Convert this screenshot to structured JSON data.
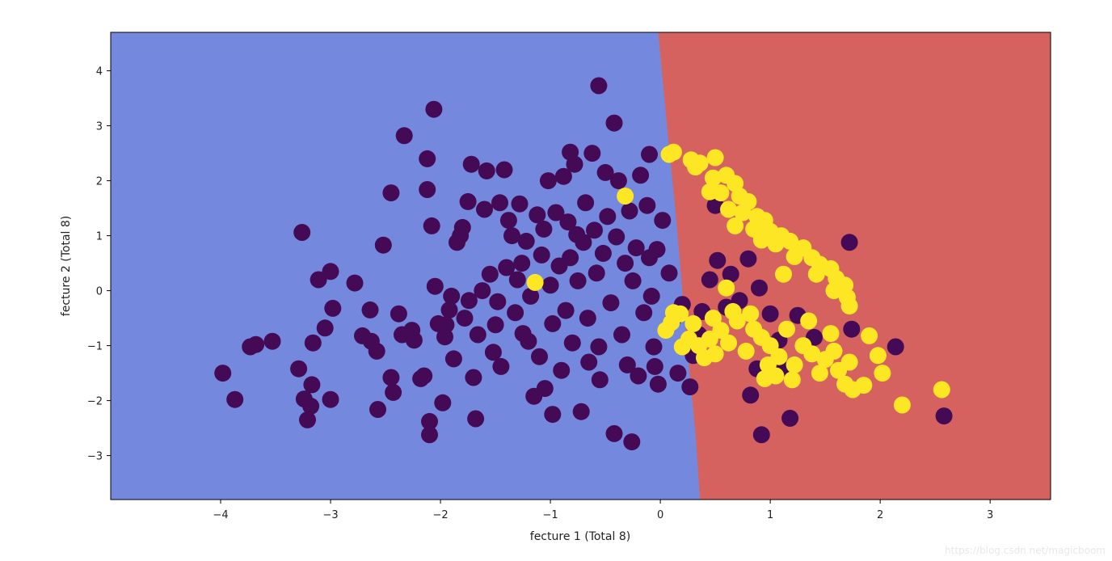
{
  "chart_data": {
    "type": "scatter",
    "title": "",
    "xlabel": "fecture 1 (Total 8)",
    "ylabel": "fecture 2 (Total 8)",
    "xlim": [
      -5.0,
      3.55
    ],
    "ylim": [
      -3.8,
      4.7
    ],
    "xticks": [
      -4,
      -3,
      -2,
      -1,
      0,
      1,
      2,
      3
    ],
    "yticks": [
      -3,
      -2,
      -1,
      0,
      1,
      2,
      3,
      4
    ],
    "grid": false,
    "legend": "none",
    "background_regions": {
      "left_color": "#7489de",
      "right_color": "#d6625f",
      "boundary": [
        [
          -0.02,
          4.7
        ],
        [
          0.07,
          2.8
        ],
        [
          0.14,
          1.4
        ],
        [
          0.2,
          0.0
        ],
        [
          0.26,
          -1.4
        ],
        [
          0.32,
          -2.6
        ],
        [
          0.36,
          -3.8
        ]
      ]
    },
    "series": [
      {
        "color": "#450a55",
        "points": [
          [
            -3.98,
            -1.5
          ],
          [
            -3.87,
            -1.98
          ],
          [
            -3.73,
            -1.02
          ],
          [
            -3.68,
            -0.98
          ],
          [
            -3.53,
            -0.92
          ],
          [
            -3.29,
            -1.42
          ],
          [
            -3.26,
            1.06
          ],
          [
            -3.24,
            -1.97
          ],
          [
            -3.21,
            -2.35
          ],
          [
            -3.18,
            -2.1
          ],
          [
            -3.17,
            -1.71
          ],
          [
            -3.16,
            -0.95
          ],
          [
            -3.11,
            0.2
          ],
          [
            -3.05,
            -0.68
          ],
          [
            -3.0,
            0.35
          ],
          [
            -3.0,
            -1.98
          ],
          [
            -2.98,
            -0.32
          ],
          [
            -2.78,
            0.14
          ],
          [
            -2.71,
            -0.82
          ],
          [
            -2.64,
            -0.35
          ],
          [
            -2.63,
            -0.92
          ],
          [
            -2.58,
            -1.1
          ],
          [
            -2.57,
            -2.16
          ],
          [
            -2.52,
            0.83
          ],
          [
            -2.45,
            -1.58
          ],
          [
            -2.43,
            -1.85
          ],
          [
            -2.38,
            -0.42
          ],
          [
            -2.35,
            -0.8
          ],
          [
            -2.45,
            1.78
          ],
          [
            -2.33,
            2.82
          ],
          [
            -2.26,
            -0.72
          ],
          [
            -2.24,
            -0.9
          ],
          [
            -2.18,
            -1.6
          ],
          [
            -2.15,
            -1.55
          ],
          [
            -2.12,
            2.4
          ],
          [
            -2.12,
            1.84
          ],
          [
            -2.1,
            -2.38
          ],
          [
            -2.1,
            -2.62
          ],
          [
            -2.08,
            1.18
          ],
          [
            -2.05,
            0.08
          ],
          [
            -2.02,
            -0.6
          ],
          [
            -1.98,
            -2.04
          ],
          [
            -1.96,
            -0.84
          ],
          [
            -1.95,
            -0.62
          ],
          [
            -1.92,
            -0.35
          ],
          [
            -1.9,
            -0.1
          ],
          [
            -1.88,
            -1.24
          ],
          [
            -1.85,
            0.88
          ],
          [
            -1.82,
            1.0
          ],
          [
            -1.8,
            1.15
          ],
          [
            -1.78,
            -0.5
          ],
          [
            -1.75,
            1.62
          ],
          [
            -1.74,
            -0.18
          ],
          [
            -1.72,
            2.3
          ],
          [
            -1.7,
            -1.58
          ],
          [
            -1.68,
            -2.33
          ],
          [
            -1.66,
            -0.8
          ],
          [
            -1.62,
            0.0
          ],
          [
            -1.6,
            1.48
          ],
          [
            -1.58,
            2.18
          ],
          [
            -1.55,
            0.3
          ],
          [
            -1.52,
            -1.12
          ],
          [
            -1.5,
            -0.62
          ],
          [
            -1.48,
            -0.2
          ],
          [
            -1.46,
            1.6
          ],
          [
            -1.45,
            -1.38
          ],
          [
            -1.42,
            2.2
          ],
          [
            -1.4,
            0.42
          ],
          [
            -1.38,
            1.28
          ],
          [
            -1.35,
            1.0
          ],
          [
            -1.32,
            -0.4
          ],
          [
            -1.3,
            0.2
          ],
          [
            -1.28,
            1.58
          ],
          [
            -1.25,
            -0.78
          ],
          [
            -1.22,
            0.9
          ],
          [
            -1.2,
            -0.92
          ],
          [
            -1.18,
            -0.1
          ],
          [
            -1.15,
            -1.92
          ],
          [
            -1.12,
            1.38
          ],
          [
            -1.1,
            -1.2
          ],
          [
            -1.08,
            0.65
          ],
          [
            -1.06,
            1.12
          ],
          [
            -1.05,
            -1.78
          ],
          [
            -1.02,
            2.0
          ],
          [
            -1.0,
            0.1
          ],
          [
            -0.98,
            -0.6
          ],
          [
            -0.95,
            1.42
          ],
          [
            -0.92,
            0.45
          ],
          [
            -0.9,
            -1.45
          ],
          [
            -0.88,
            2.08
          ],
          [
            -0.86,
            -0.36
          ],
          [
            -0.84,
            1.25
          ],
          [
            -0.82,
            0.6
          ],
          [
            -0.8,
            -0.95
          ],
          [
            -0.78,
            2.3
          ],
          [
            -0.76,
            1.02
          ],
          [
            -0.75,
            0.18
          ],
          [
            -0.72,
            -2.2
          ],
          [
            -0.7,
            0.88
          ],
          [
            -0.68,
            1.6
          ],
          [
            -0.66,
            -0.5
          ],
          [
            -0.65,
            -1.3
          ],
          [
            -0.62,
            2.5
          ],
          [
            -0.6,
            1.1
          ],
          [
            -0.58,
            0.32
          ],
          [
            -0.56,
            -1.02
          ],
          [
            -0.55,
            -1.62
          ],
          [
            -0.52,
            0.68
          ],
          [
            -0.5,
            2.15
          ],
          [
            -0.48,
            1.35
          ],
          [
            -0.45,
            -0.22
          ],
          [
            -0.42,
            -2.6
          ],
          [
            -0.4,
            0.98
          ],
          [
            -0.38,
            2.0
          ],
          [
            -0.35,
            -0.8
          ],
          [
            -0.32,
            0.5
          ],
          [
            -0.3,
            -1.35
          ],
          [
            -0.28,
            1.45
          ],
          [
            -0.26,
            -2.75
          ],
          [
            -0.25,
            0.18
          ],
          [
            -0.22,
            0.78
          ],
          [
            -0.2,
            -1.55
          ],
          [
            -0.18,
            2.1
          ],
          [
            -0.15,
            -0.4
          ],
          [
            -0.12,
            1.55
          ],
          [
            -0.1,
            0.6
          ],
          [
            -0.08,
            -0.1
          ],
          [
            -0.06,
            -1.02
          ],
          [
            -0.05,
            -1.38
          ],
          [
            -0.03,
            0.75
          ],
          [
            -0.02,
            -1.7
          ],
          [
            0.02,
            1.28
          ],
          [
            0.08,
            0.32
          ],
          [
            0.12,
            -0.5
          ],
          [
            0.16,
            -1.5
          ],
          [
            0.2,
            -0.25
          ],
          [
            0.27,
            -1.75
          ],
          [
            0.3,
            -1.18
          ],
          [
            0.35,
            -0.8
          ],
          [
            0.38,
            -0.38
          ],
          [
            0.45,
            0.2
          ],
          [
            0.52,
            0.55
          ],
          [
            0.6,
            -0.3
          ],
          [
            0.64,
            0.3
          ],
          [
            0.72,
            -0.18
          ],
          [
            0.8,
            0.58
          ],
          [
            0.88,
            -1.42
          ],
          [
            0.9,
            0.05
          ],
          [
            1.0,
            -0.42
          ],
          [
            1.08,
            -0.9
          ],
          [
            0.82,
            -1.9
          ],
          [
            0.92,
            -2.62
          ],
          [
            1.1,
            -1.42
          ],
          [
            1.18,
            -2.32
          ],
          [
            1.25,
            -0.45
          ],
          [
            1.4,
            -0.85
          ],
          [
            1.72,
            0.88
          ],
          [
            1.74,
            -0.7
          ],
          [
            2.14,
            -1.02
          ],
          [
            2.58,
            -2.28
          ],
          [
            0.5,
            1.55
          ],
          [
            -0.56,
            3.73
          ],
          [
            -2.06,
            3.3
          ],
          [
            -0.42,
            3.05
          ],
          [
            -0.82,
            2.52
          ],
          [
            -0.1,
            2.48
          ],
          [
            -1.26,
            0.5
          ],
          [
            -0.98,
            -2.25
          ]
        ]
      },
      {
        "color": "#fde725",
        "points": [
          [
            0.08,
            2.48
          ],
          [
            0.12,
            2.52
          ],
          [
            0.28,
            2.38
          ],
          [
            0.36,
            2.32
          ],
          [
            0.5,
            2.42
          ],
          [
            0.32,
            2.25
          ],
          [
            0.48,
            2.05
          ],
          [
            0.6,
            2.1
          ],
          [
            0.68,
            1.95
          ],
          [
            0.45,
            1.8
          ],
          [
            0.55,
            1.78
          ],
          [
            0.72,
            1.72
          ],
          [
            0.8,
            1.62
          ],
          [
            0.62,
            1.48
          ],
          [
            0.75,
            1.42
          ],
          [
            0.88,
            1.35
          ],
          [
            0.95,
            1.28
          ],
          [
            0.68,
            1.18
          ],
          [
            0.85,
            1.12
          ],
          [
            1.0,
            1.08
          ],
          [
            1.1,
            1.0
          ],
          [
            0.92,
            0.92
          ],
          [
            1.05,
            0.85
          ],
          [
            1.18,
            0.9
          ],
          [
            1.3,
            0.78
          ],
          [
            1.22,
            0.62
          ],
          [
            1.38,
            0.6
          ],
          [
            1.45,
            0.48
          ],
          [
            1.55,
            0.4
          ],
          [
            1.42,
            0.3
          ],
          [
            1.6,
            0.22
          ],
          [
            1.68,
            0.1
          ],
          [
            1.58,
            0.0
          ],
          [
            1.7,
            -0.12
          ],
          [
            1.72,
            -0.28
          ],
          [
            1.12,
            0.3
          ],
          [
            0.6,
            0.05
          ],
          [
            0.1,
            -0.58
          ],
          [
            0.05,
            -0.72
          ],
          [
            0.18,
            -0.42
          ],
          [
            0.26,
            -0.88
          ],
          [
            0.35,
            -1.0
          ],
          [
            0.4,
            -1.22
          ],
          [
            0.48,
            -0.5
          ],
          [
            0.55,
            -0.72
          ],
          [
            0.62,
            -0.95
          ],
          [
            0.7,
            -0.55
          ],
          [
            0.78,
            -1.1
          ],
          [
            0.85,
            -0.7
          ],
          [
            0.92,
            -0.85
          ],
          [
            1.0,
            -1.0
          ],
          [
            1.08,
            -1.2
          ],
          [
            1.15,
            -0.7
          ],
          [
            1.22,
            -1.35
          ],
          [
            1.3,
            -1.0
          ],
          [
            1.38,
            -1.15
          ],
          [
            1.45,
            -1.5
          ],
          [
            1.5,
            -1.25
          ],
          [
            1.58,
            -1.1
          ],
          [
            1.62,
            -1.45
          ],
          [
            1.68,
            -1.7
          ],
          [
            1.75,
            -1.8
          ],
          [
            1.85,
            -1.72
          ],
          [
            1.72,
            -1.3
          ],
          [
            1.9,
            -0.82
          ],
          [
            1.98,
            -1.18
          ],
          [
            2.02,
            -1.5
          ],
          [
            2.2,
            -2.08
          ],
          [
            2.56,
            -1.8
          ],
          [
            1.05,
            -1.55
          ],
          [
            0.95,
            -1.6
          ],
          [
            1.2,
            -1.62
          ],
          [
            0.3,
            -0.6
          ],
          [
            0.45,
            -0.88
          ],
          [
            0.66,
            -0.38
          ],
          [
            0.82,
            -0.42
          ],
          [
            -0.32,
            1.72
          ],
          [
            -1.14,
            0.15
          ],
          [
            0.12,
            -0.4
          ],
          [
            0.2,
            -1.02
          ],
          [
            0.5,
            -1.15
          ],
          [
            1.35,
            -0.55
          ],
          [
            1.55,
            -0.78
          ],
          [
            0.98,
            -1.35
          ]
        ]
      }
    ]
  },
  "watermark": "https://blog.csdn.net/magicboom"
}
